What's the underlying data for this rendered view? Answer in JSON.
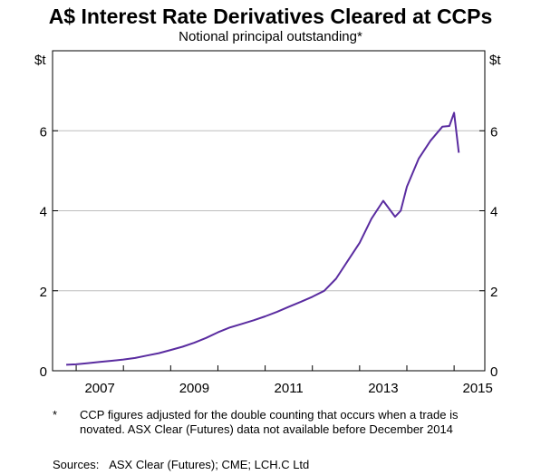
{
  "chart_data": {
    "type": "line",
    "title": "A$ Interest Rate Derivatives Cleared at CCPs",
    "subtitle": "Notional principal outstanding*",
    "left_unit": "$t",
    "right_unit": "$t",
    "ylim": [
      0,
      8
    ],
    "yticks": [
      0,
      2,
      4,
      6
    ],
    "ytick_labels": [
      "0",
      "2",
      "4",
      "6"
    ],
    "xlim": [
      2006.5,
      2015.65
    ],
    "xticks": [
      2007,
      2009,
      2011,
      2013,
      2015
    ],
    "xtick_labels": [
      "2007",
      "2009",
      "2011",
      "2013",
      "2015"
    ],
    "grid": true,
    "series": [
      {
        "color": "#5a2ca0",
        "x": [
          2006.79,
          2007.0,
          2007.25,
          2007.5,
          2007.75,
          2008.0,
          2008.25,
          2008.5,
          2008.75,
          2009.0,
          2009.25,
          2009.5,
          2009.75,
          2010.0,
          2010.25,
          2010.5,
          2010.75,
          2011.0,
          2011.25,
          2011.5,
          2011.75,
          2012.0,
          2012.25,
          2012.5,
          2012.75,
          2013.0,
          2013.25,
          2013.5,
          2013.75,
          2013.87,
          2014.0,
          2014.25,
          2014.5,
          2014.75,
          2014.9,
          2015.0,
          2015.1
        ],
        "y": [
          0.15,
          0.16,
          0.19,
          0.22,
          0.25,
          0.28,
          0.32,
          0.38,
          0.44,
          0.52,
          0.6,
          0.7,
          0.82,
          0.96,
          1.08,
          1.17,
          1.26,
          1.36,
          1.47,
          1.6,
          1.72,
          1.85,
          2.0,
          2.3,
          2.75,
          3.2,
          3.8,
          4.25,
          3.85,
          4.0,
          4.6,
          5.3,
          5.75,
          6.1,
          6.12,
          6.45,
          5.45
        ]
      }
    ]
  },
  "notes": {
    "marker": "*",
    "text": "CCP figures adjusted for the double counting that occurs when a trade is novated. ASX Clear (Futures) data not available before December 2014",
    "sources_label": "Sources:",
    "sources_text": "ASX Clear (Futures); CME; LCH.C Ltd"
  }
}
